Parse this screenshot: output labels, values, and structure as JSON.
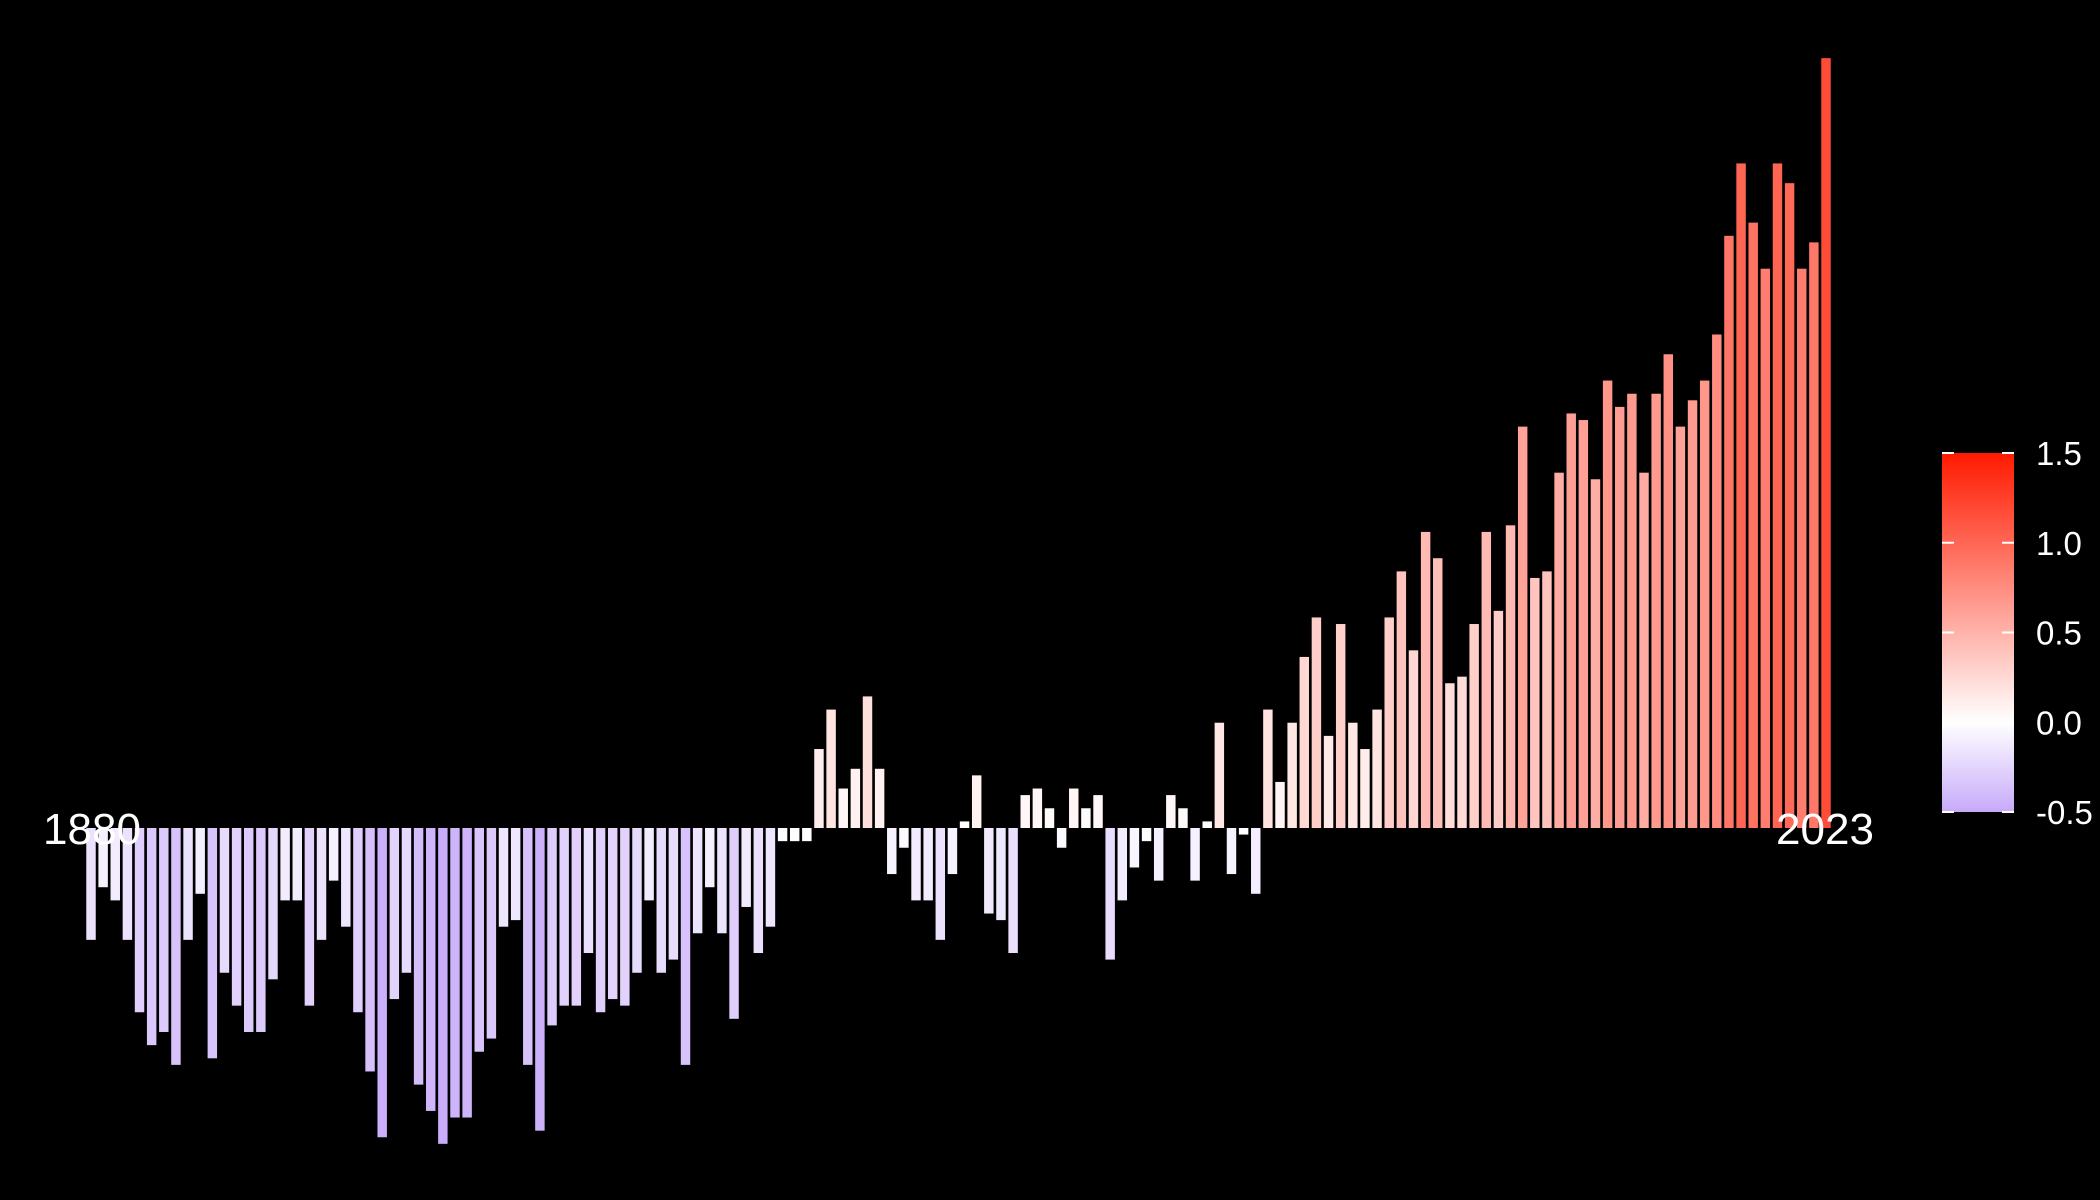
{
  "chart_data": {
    "type": "bar",
    "title": "",
    "xlabel": "",
    "ylabel": "",
    "start_year": 1880,
    "end_year": 2023,
    "start_label": "1880",
    "end_label": "2023",
    "ylim": [
      -0.5,
      1.5
    ],
    "values": [
      -0.17,
      -0.09,
      -0.11,
      -0.17,
      -0.28,
      -0.33,
      -0.31,
      -0.36,
      -0.17,
      -0.1,
      -0.35,
      -0.22,
      -0.27,
      -0.31,
      -0.31,
      -0.23,
      -0.11,
      -0.11,
      -0.27,
      -0.17,
      -0.08,
      -0.15,
      -0.28,
      -0.37,
      -0.47,
      -0.26,
      -0.22,
      -0.39,
      -0.43,
      -0.48,
      -0.44,
      -0.44,
      -0.34,
      -0.32,
      -0.15,
      -0.14,
      -0.36,
      -0.46,
      -0.3,
      -0.27,
      -0.27,
      -0.19,
      -0.28,
      -0.26,
      -0.27,
      -0.22,
      -0.11,
      -0.22,
      -0.2,
      -0.36,
      -0.16,
      -0.09,
      -0.16,
      -0.29,
      -0.12,
      -0.19,
      -0.15,
      -0.02,
      -0.02,
      -0.02,
      0.12,
      0.18,
      0.06,
      0.09,
      0.2,
      0.09,
      -0.07,
      -0.03,
      -0.11,
      -0.11,
      -0.17,
      -0.07,
      0.01,
      0.08,
      -0.13,
      -0.14,
      -0.19,
      0.05,
      0.06,
      0.03,
      -0.03,
      0.06,
      0.03,
      0.05,
      -0.2,
      -0.11,
      -0.06,
      -0.02,
      -0.08,
      0.05,
      0.03,
      -0.08,
      0.01,
      0.16,
      -0.07,
      -0.01,
      -0.1,
      0.18,
      0.07,
      0.16,
      0.26,
      0.32,
      0.14,
      0.31,
      0.16,
      0.12,
      0.18,
      0.32,
      0.39,
      0.27,
      0.45,
      0.41,
      0.22,
      0.23,
      0.31,
      0.45,
      0.33,
      0.46,
      0.61,
      0.38,
      0.39,
      0.54,
      0.63,
      0.62,
      0.53,
      0.68,
      0.64,
      0.66,
      0.54,
      0.66,
      0.72,
      0.61,
      0.65,
      0.68,
      0.75,
      0.9,
      1.01,
      0.92,
      0.85,
      1.01,
      0.98,
      0.85,
      0.89,
      1.17
    ],
    "colorbar": {
      "ticks": [
        -0.5,
        0.0,
        0.5,
        1.0,
        1.5
      ],
      "tick_labels": [
        "-0.5",
        "0.0",
        "0.5",
        "1.0",
        "1.5"
      ],
      "colors": {
        "min": "#c7aafa",
        "mid": "#ffffff",
        "max": "#ff1a00"
      }
    },
    "background": "#000000",
    "grid": false,
    "legend": "right"
  },
  "labels": {
    "start_year": "1880",
    "end_year": "2023"
  }
}
